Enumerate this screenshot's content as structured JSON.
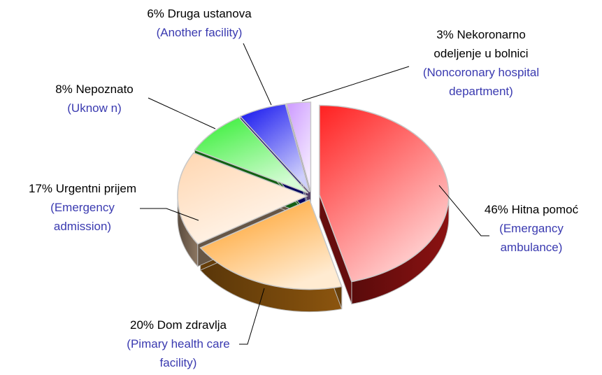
{
  "chart_data": {
    "type": "pie",
    "categories": [
      "Hitna pomoć",
      "Dom zdravlja",
      "Urgentni prijem",
      "Nepoznato",
      "Druga ustanova",
      "Nekoronarno odeljenje u bolnici"
    ],
    "values": [
      46,
      20,
      17,
      8,
      6,
      3
    ],
    "value_labels": [
      "46%",
      "20%",
      "17%",
      "8%",
      "6%",
      "3%"
    ],
    "translations": [
      "(Emergancy ambulance)",
      "(Pimary health care facility)",
      "(Emergency admission)",
      "(Uknow n)",
      "(Another facility)",
      "(Noncoronary hospital department)"
    ],
    "colors": [
      "#ff2020",
      "#ff9a1a",
      "#ffd6b0",
      "#30ee30",
      "#1010ee",
      "#cc99ff"
    ]
  }
}
